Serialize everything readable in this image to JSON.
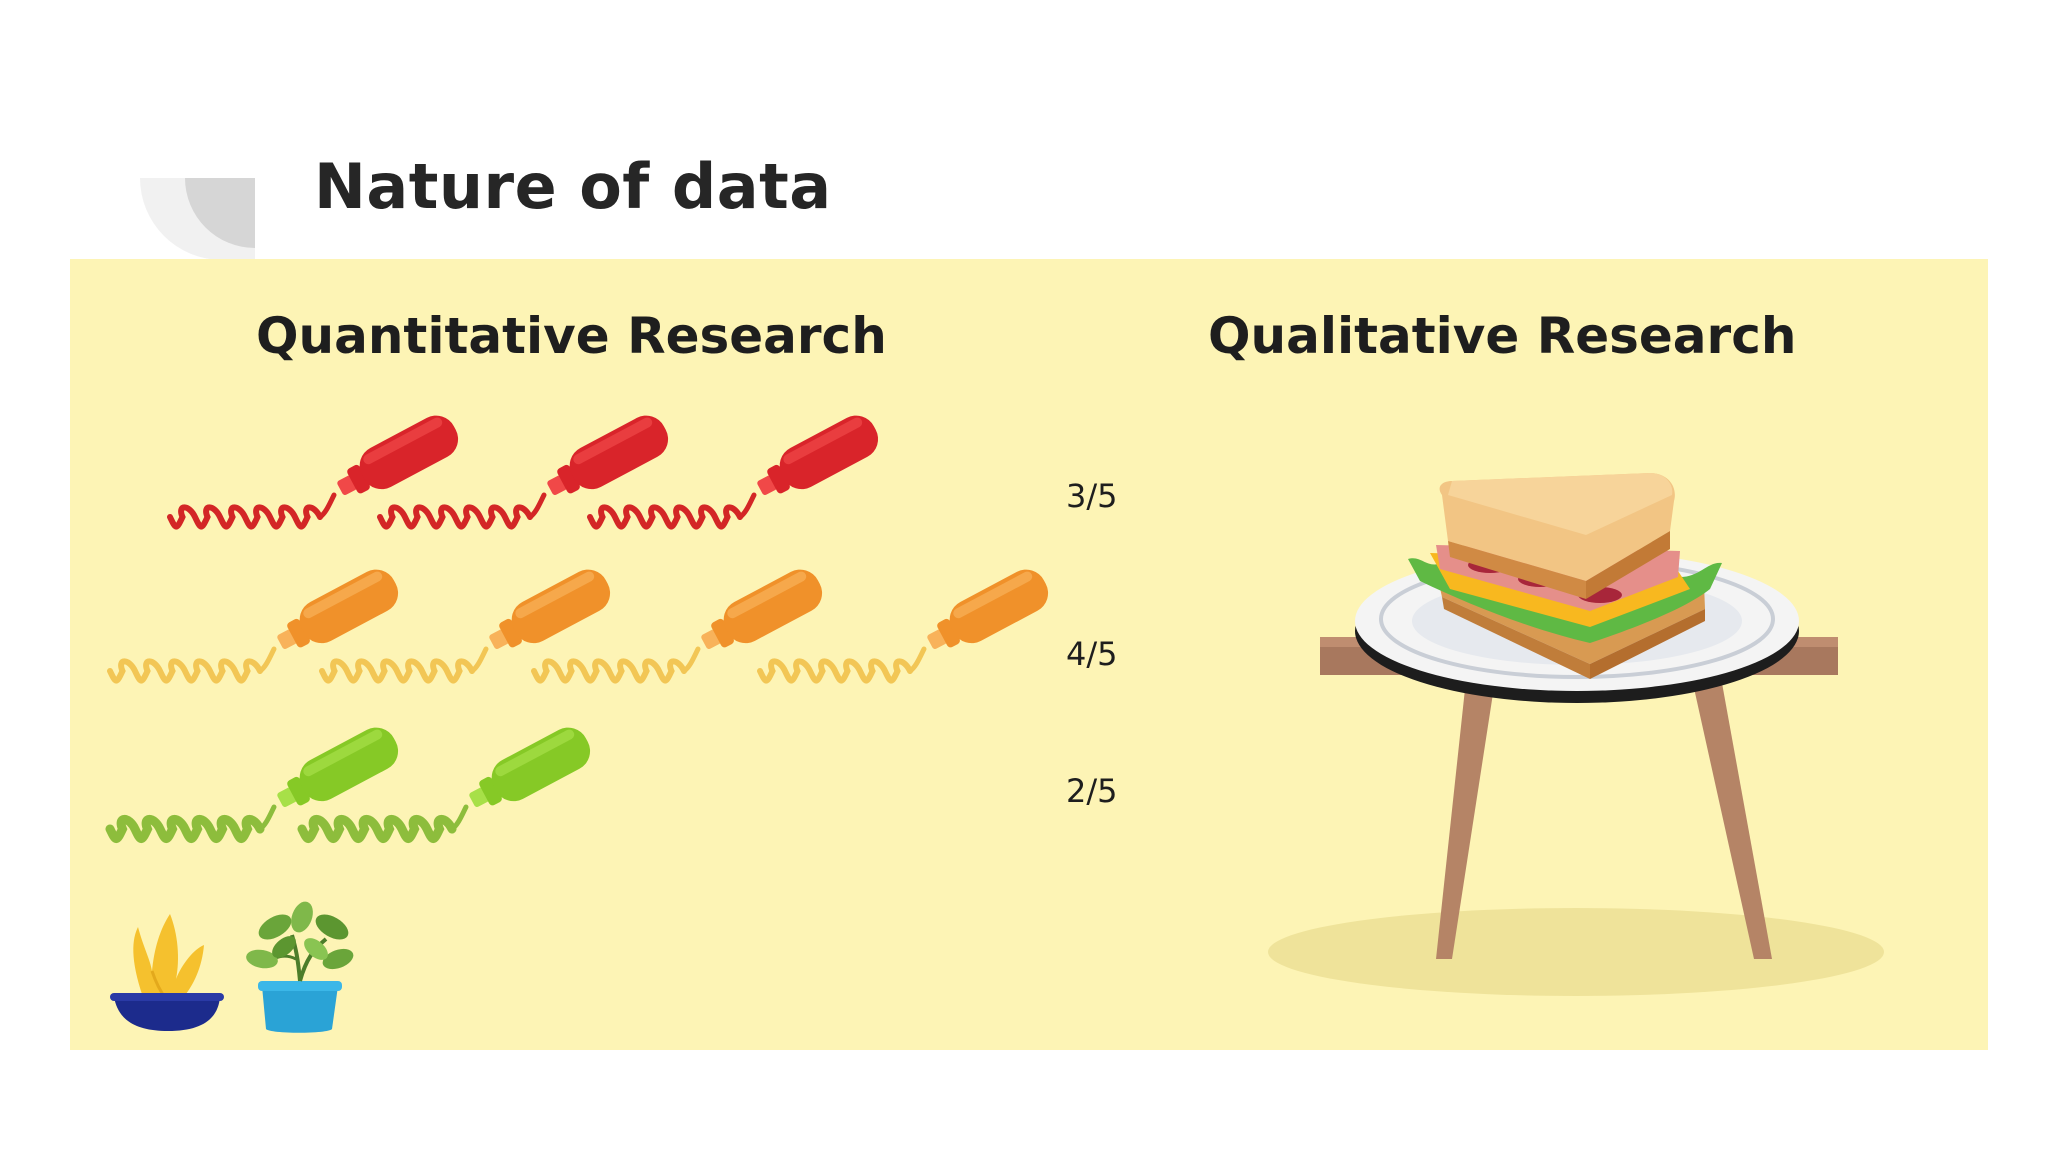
{
  "slide": {
    "title": "Nature of data"
  },
  "quantitative": {
    "heading": "Quantitative Research",
    "rows": [
      {
        "rating": "3/5",
        "count": 3,
        "out_of": 5,
        "color": "#d9242a",
        "highlight": "#f04848",
        "drizzle": "#d32626"
      },
      {
        "rating": "4/5",
        "count": 4,
        "out_of": 5,
        "color": "#f0912a",
        "highlight": "#f8b25a",
        "drizzle": "#f2c655"
      },
      {
        "rating": "2/5",
        "count": 2,
        "out_of": 5,
        "color": "#86c926",
        "highlight": "#a7e048",
        "drizzle": "#8dbd3c"
      }
    ]
  },
  "qualitative": {
    "heading": "Qualitative Research",
    "illustration": "sandwich-on-table"
  },
  "colors": {
    "panel_background": "#fdf4b5",
    "title_text": "#262626"
  }
}
